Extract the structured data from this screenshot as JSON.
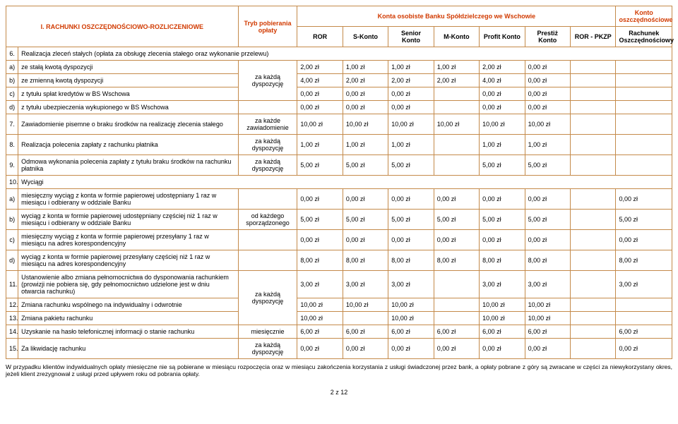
{
  "colors": {
    "border": "#c48a4a",
    "heading": "#d13a00",
    "text": "#000000",
    "background": "#ffffff"
  },
  "header": {
    "section_title": "I. RACHUNKI OSZCZĘDNOŚCIOWO-ROZLICZENIOWE",
    "mode_header": "Tryb pobierania opłaty",
    "group_personal": "Konta osobiste Banku Spółdzielczego we Wschowie",
    "group_savings": "Konto oszczędnościowe",
    "cols": {
      "ror": "ROR",
      "skonto": "S-Konto",
      "senior": "Senior Konto",
      "mkonto": "M-Konto",
      "profit": "Profit Konto",
      "prestiz": "Prestiż Konto",
      "rorpkzp": "ROR - PKZP",
      "rachunek": "Rachunek Oszczędnościowy"
    }
  },
  "rows": {
    "r6": {
      "n": "6.",
      "d": "Realizacja zleceń stałych (opłata za obsługę zlecenia stałego oraz wykonanie przelewu)"
    },
    "ra": {
      "n": "a)",
      "d": "ze stałą kwotą dyspozycji",
      "v": [
        "2,00 zł",
        "1,00 zł",
        "1,00 zł",
        "1,00 zł",
        "2,00 zł",
        "0,00 zł",
        "",
        ""
      ]
    },
    "rb": {
      "n": "b)",
      "d": "ze zmienną kwotą dyspozycji",
      "v": [
        "4,00 zł",
        "2,00 zł",
        "2,00 zł",
        "2,00 zł",
        "4,00 zł",
        "0,00 zł",
        "",
        ""
      ]
    },
    "rc": {
      "n": "c)",
      "d": "z tytułu spłat kredytów w BS Wschowa",
      "v": [
        "0,00 zł",
        "0,00 zł",
        "0,00 zł",
        "",
        "0,00 zł",
        "0,00 zł",
        "",
        ""
      ]
    },
    "rd": {
      "n": "d)",
      "d": "z tytułu ubezpieczenia wykupionego w BS Wschowa",
      "v": [
        "0,00 zł",
        "0,00 zł",
        "0,00 zł",
        "",
        "0,00 zł",
        "0,00 zł",
        "",
        ""
      ]
    },
    "r7": {
      "n": "7.",
      "d": "Zawiadomienie pisemne o braku środków na realizację zlecenia stałego",
      "m": "za każde zawiadomienie",
      "v": [
        "10,00 zł",
        "10,00 zł",
        "10,00 zł",
        "10,00 zł",
        "10,00 zł",
        "10,00 zł",
        "",
        ""
      ]
    },
    "r8": {
      "n": "8.",
      "d": "Realizacja polecenia zapłaty z rachunku płatnika",
      "m": "za każdą dyspozycję",
      "v": [
        "1,00 zł",
        "1,00 zł",
        "1,00 zł",
        "",
        "1,00 zł",
        "1,00 zł",
        "",
        ""
      ]
    },
    "r9": {
      "n": "9.",
      "d": "Odmowa wykonania polecenia zapłaty z tytułu braku środków na rachunku  płatnika",
      "m": "za każdą dyspozycję",
      "v": [
        "5,00 zł",
        "5,00 zł",
        "5,00 zł",
        "",
        "5,00 zł",
        "5,00 zł",
        "",
        ""
      ]
    },
    "r10": {
      "n": "10.",
      "d": "Wyciągi"
    },
    "r10a": {
      "n": "a)",
      "d": "miesięczny wyciąg z konta w formie papierowej udostępniany 1 raz w miesiącu i odbierany w oddziale Banku",
      "v": [
        "0,00 zł",
        "0,00 zł",
        "0,00 zł",
        "0,00 zł",
        "0,00 zł",
        "0,00 zł",
        "",
        "0,00 zł"
      ]
    },
    "r10b": {
      "n": "b)",
      "d": "wyciąg z konta w formie papierowej udostępniany częściej niż 1 raz w miesiącu i odbierany w oddziale Banku",
      "m": "od każdego sporządzonego",
      "v": [
        "5,00 zł",
        "5,00 zł",
        "5,00 zł",
        "5,00 zł",
        "5,00 zł",
        "5,00 zł",
        "",
        "5,00 zł"
      ]
    },
    "r10c": {
      "n": "c)",
      "d": "miesięczny wyciąg z konta w formie papierowej przesyłany 1 raz w miesiącu na adres korespondencyjny",
      "v": [
        "0,00 zł",
        "0,00 zł",
        "0,00 zł",
        "0,00 zł",
        "0,00 zł",
        "0,00 zł",
        "",
        "0,00 zł"
      ]
    },
    "r10d": {
      "n": "d)",
      "d": "wyciąg z konta w formie papierowej przesyłany częściej niż 1 raz w miesiącu na adres korespondencyjny",
      "v": [
        "8,00 zł",
        "8,00 zł",
        "8,00 zł",
        "8,00 zł",
        "8,00 zł",
        "8,00 zł",
        "",
        "8,00 zł"
      ]
    },
    "r11": {
      "n": "11.",
      "d": "Ustanowienie albo zmiana pełnomocnictwa do dysponowania rachunkiem (prowizji nie pobiera się, gdy pełnomocnictwo udzielone jest w dniu otwarcia rachunku)",
      "v": [
        "3,00 zł",
        "3,00 zł",
        "3,00 zł",
        "",
        "3,00 zł",
        "3,00 zł",
        "",
        "3,00 zł"
      ]
    },
    "r12": {
      "n": "12.",
      "d": "Zmiana rachunku wspólnego na indywidualny i odwrotnie",
      "v": [
        "10,00 zł",
        "10,00 zł",
        "10,00 zł",
        "",
        "10,00 zł",
        "10,00 zł",
        "",
        ""
      ]
    },
    "r13": {
      "n": "13.",
      "d": "Zmiana pakietu rachunku",
      "v": [
        "10,00 zł",
        "",
        "10,00 zł",
        "",
        "10,00 zł",
        "10,00 zł",
        "",
        ""
      ]
    },
    "r14": {
      "n": "14.",
      "d": "Uzyskanie na hasło telefonicznej informacji o stanie rachunku",
      "m": "miesięcznie",
      "v": [
        "6,00 zł",
        "6,00 zł",
        "6,00 zł",
        "6,00 zł",
        "6,00 zł",
        "6,00 zł",
        "",
        "6,00 zł"
      ]
    },
    "r15": {
      "n": "15.",
      "d": "Za likwidację rachunku",
      "m": "za każdą dyspozycję",
      "v": [
        "0,00 zł",
        "0,00 zł",
        "0,00 zł",
        "0,00 zł",
        "0,00 zł",
        "0,00 zł",
        "",
        "0,00 zł"
      ]
    }
  },
  "mode_shared_abc": "za każdą dyspozycję",
  "mode_shared_1113": "za każdą dyspozycję",
  "footnote": "W przypadku klientów indywidualnych opłaty miesięczne nie są pobierane w miesiącu rozpoczęcia oraz w miesiącu zakończenia korzystania z usługi świadczonej przez bank, a opłaty pobrane z góry są zwracane w części za niewykorzystany okres, jeżeli klient zrezygnował z usługi przed upływem roku od pobrania opłaty.",
  "page": "2 z 12"
}
